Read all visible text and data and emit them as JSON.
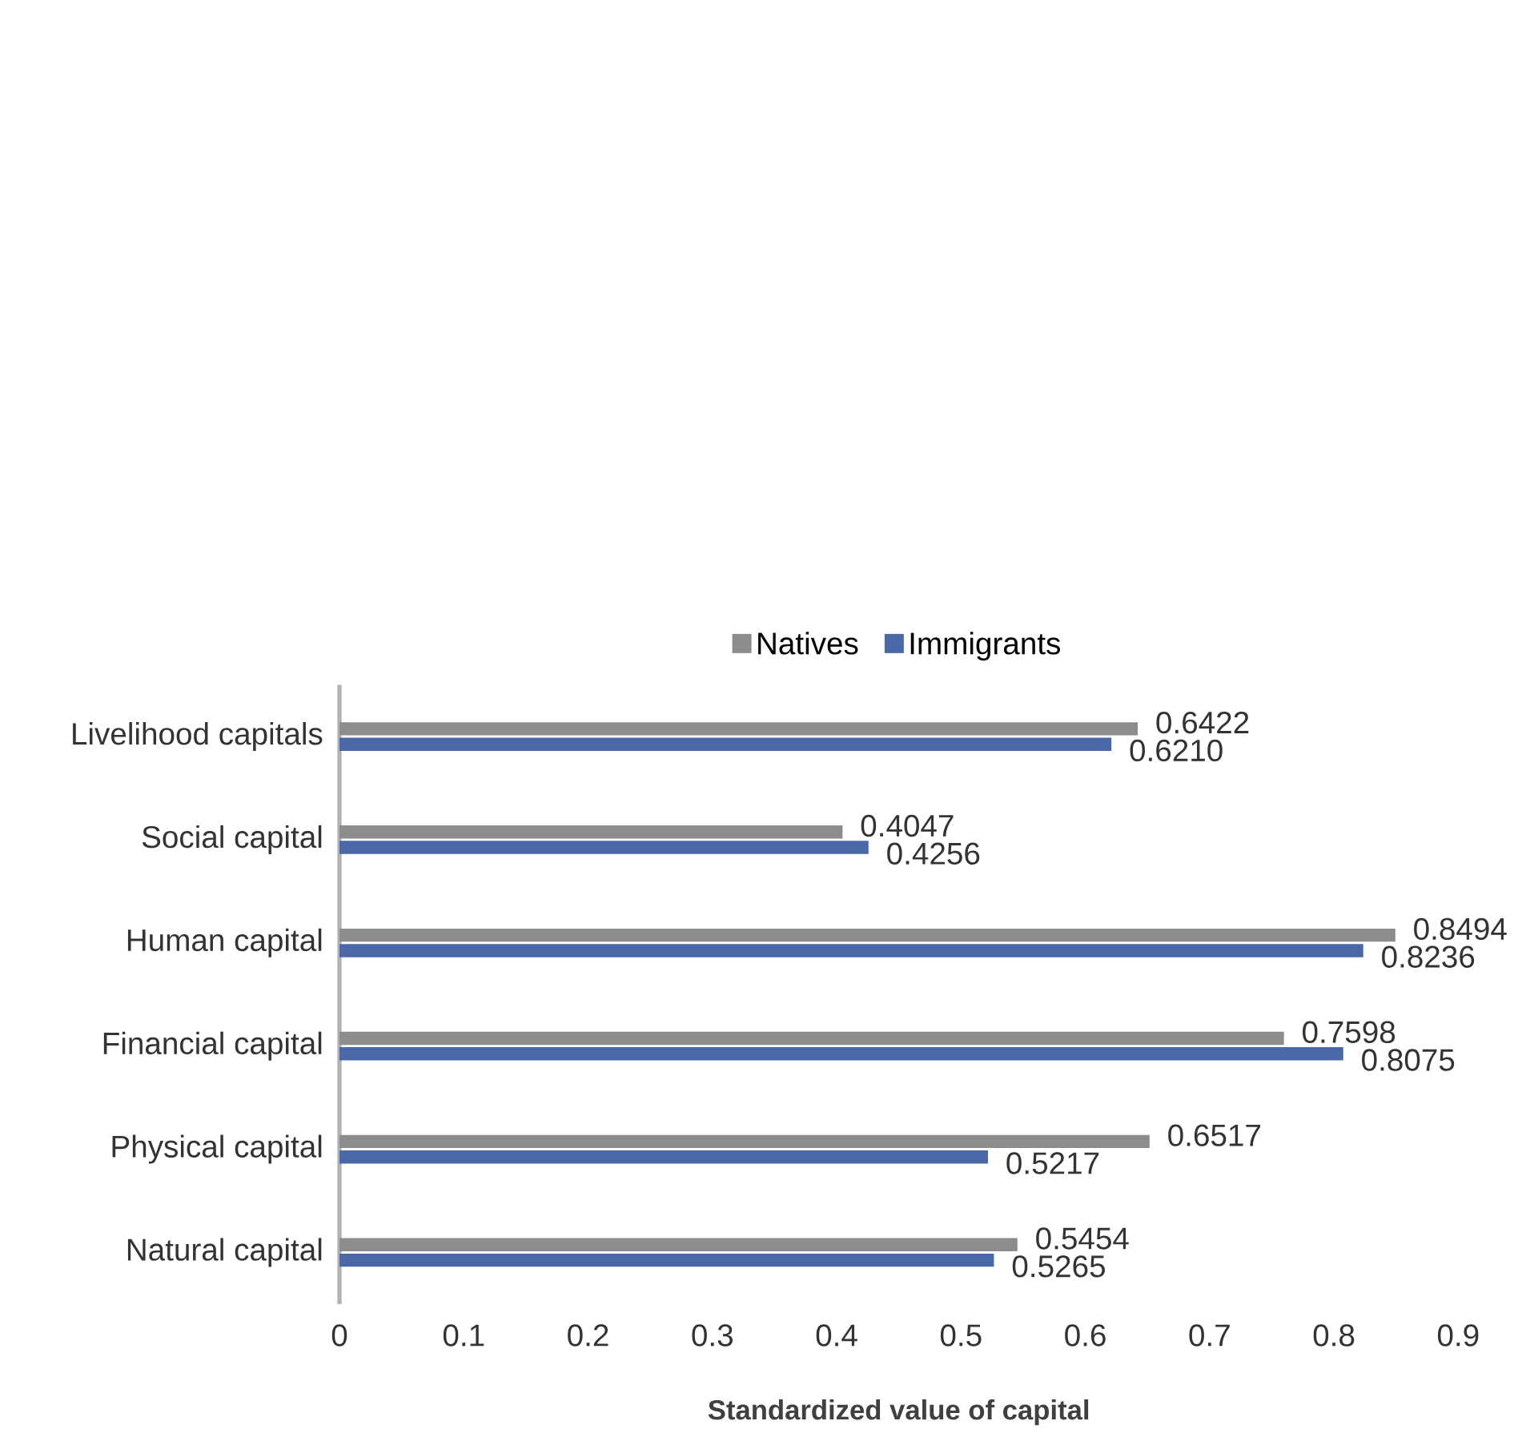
{
  "chart_data": {
    "type": "bar",
    "orientation": "horizontal",
    "xlabel": "Standardized value of capital",
    "categories": [
      "Livelihood capitals",
      "Social capital",
      "Human capital",
      "Financial capital",
      "Physical capital",
      "Natural capital"
    ],
    "series": [
      {
        "name": "Natives",
        "color": "#8c8c8c",
        "values": [
          0.6422,
          0.4047,
          0.8494,
          0.7598,
          0.6517,
          0.5454
        ],
        "value_labels": [
          "0.6422",
          "0.4047",
          "0.8494",
          "0.7598",
          "0.6517",
          "0.5454"
        ]
      },
      {
        "name": "Immigrants",
        "color": "#4a68a8",
        "values": [
          0.621,
          0.4256,
          0.8236,
          0.8075,
          0.5217,
          0.5265
        ],
        "value_labels": [
          "0.6210",
          "0.4256",
          "0.8236",
          "0.8075",
          "0.5217",
          "0.5265"
        ]
      }
    ],
    "xlim": [
      0,
      0.9
    ],
    "xticks": [
      0,
      0.1,
      0.2,
      0.3,
      0.4,
      0.5,
      0.6,
      0.7,
      0.8,
      0.9
    ],
    "grid": false,
    "legend": "top"
  }
}
